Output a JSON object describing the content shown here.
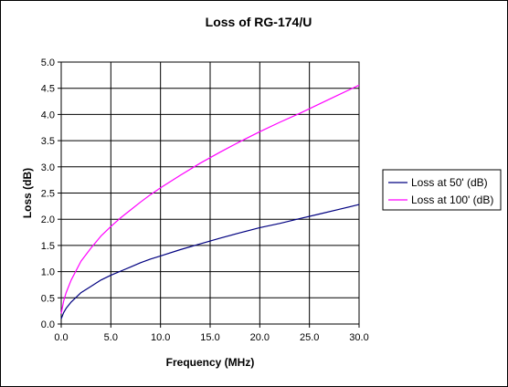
{
  "chart_data": {
    "type": "line",
    "title": "Loss of RG-174/U",
    "xlabel": "Frequency (MHz)",
    "ylabel": "Loss (dB)",
    "xlim": [
      0,
      30
    ],
    "ylim": [
      0,
      5
    ],
    "x_ticks": [
      "0.0",
      "5.0",
      "10.0",
      "15.0",
      "20.0",
      "25.0",
      "30.0"
    ],
    "y_ticks": [
      "0.0",
      "0.5",
      "1.0",
      "1.5",
      "2.0",
      "2.5",
      "3.0",
      "3.5",
      "4.0",
      "4.5",
      "5.0"
    ],
    "grid": true,
    "legend_position": "right",
    "x": [
      0,
      0.25,
      0.5,
      1,
      2,
      3,
      4,
      5,
      6,
      7,
      8,
      9,
      10,
      12,
      14,
      16,
      18,
      20,
      22,
      24,
      26,
      28,
      30
    ],
    "series": [
      {
        "name": "Loss at 50' (dB)",
        "color": "#000080",
        "values": [
          0.1,
          0.22,
          0.3,
          0.42,
          0.6,
          0.72,
          0.84,
          0.93,
          1.01,
          1.09,
          1.17,
          1.24,
          1.3,
          1.42,
          1.53,
          1.64,
          1.74,
          1.84,
          1.92,
          2.01,
          2.1,
          2.19,
          2.28
        ]
      },
      {
        "name": "Loss at 100' (dB)",
        "color": "#ff00ff",
        "values": [
          0.2,
          0.44,
          0.6,
          0.84,
          1.2,
          1.45,
          1.68,
          1.86,
          2.03,
          2.18,
          2.33,
          2.47,
          2.6,
          2.84,
          3.07,
          3.28,
          3.48,
          3.67,
          3.85,
          4.02,
          4.2,
          4.38,
          4.56
        ]
      }
    ]
  }
}
